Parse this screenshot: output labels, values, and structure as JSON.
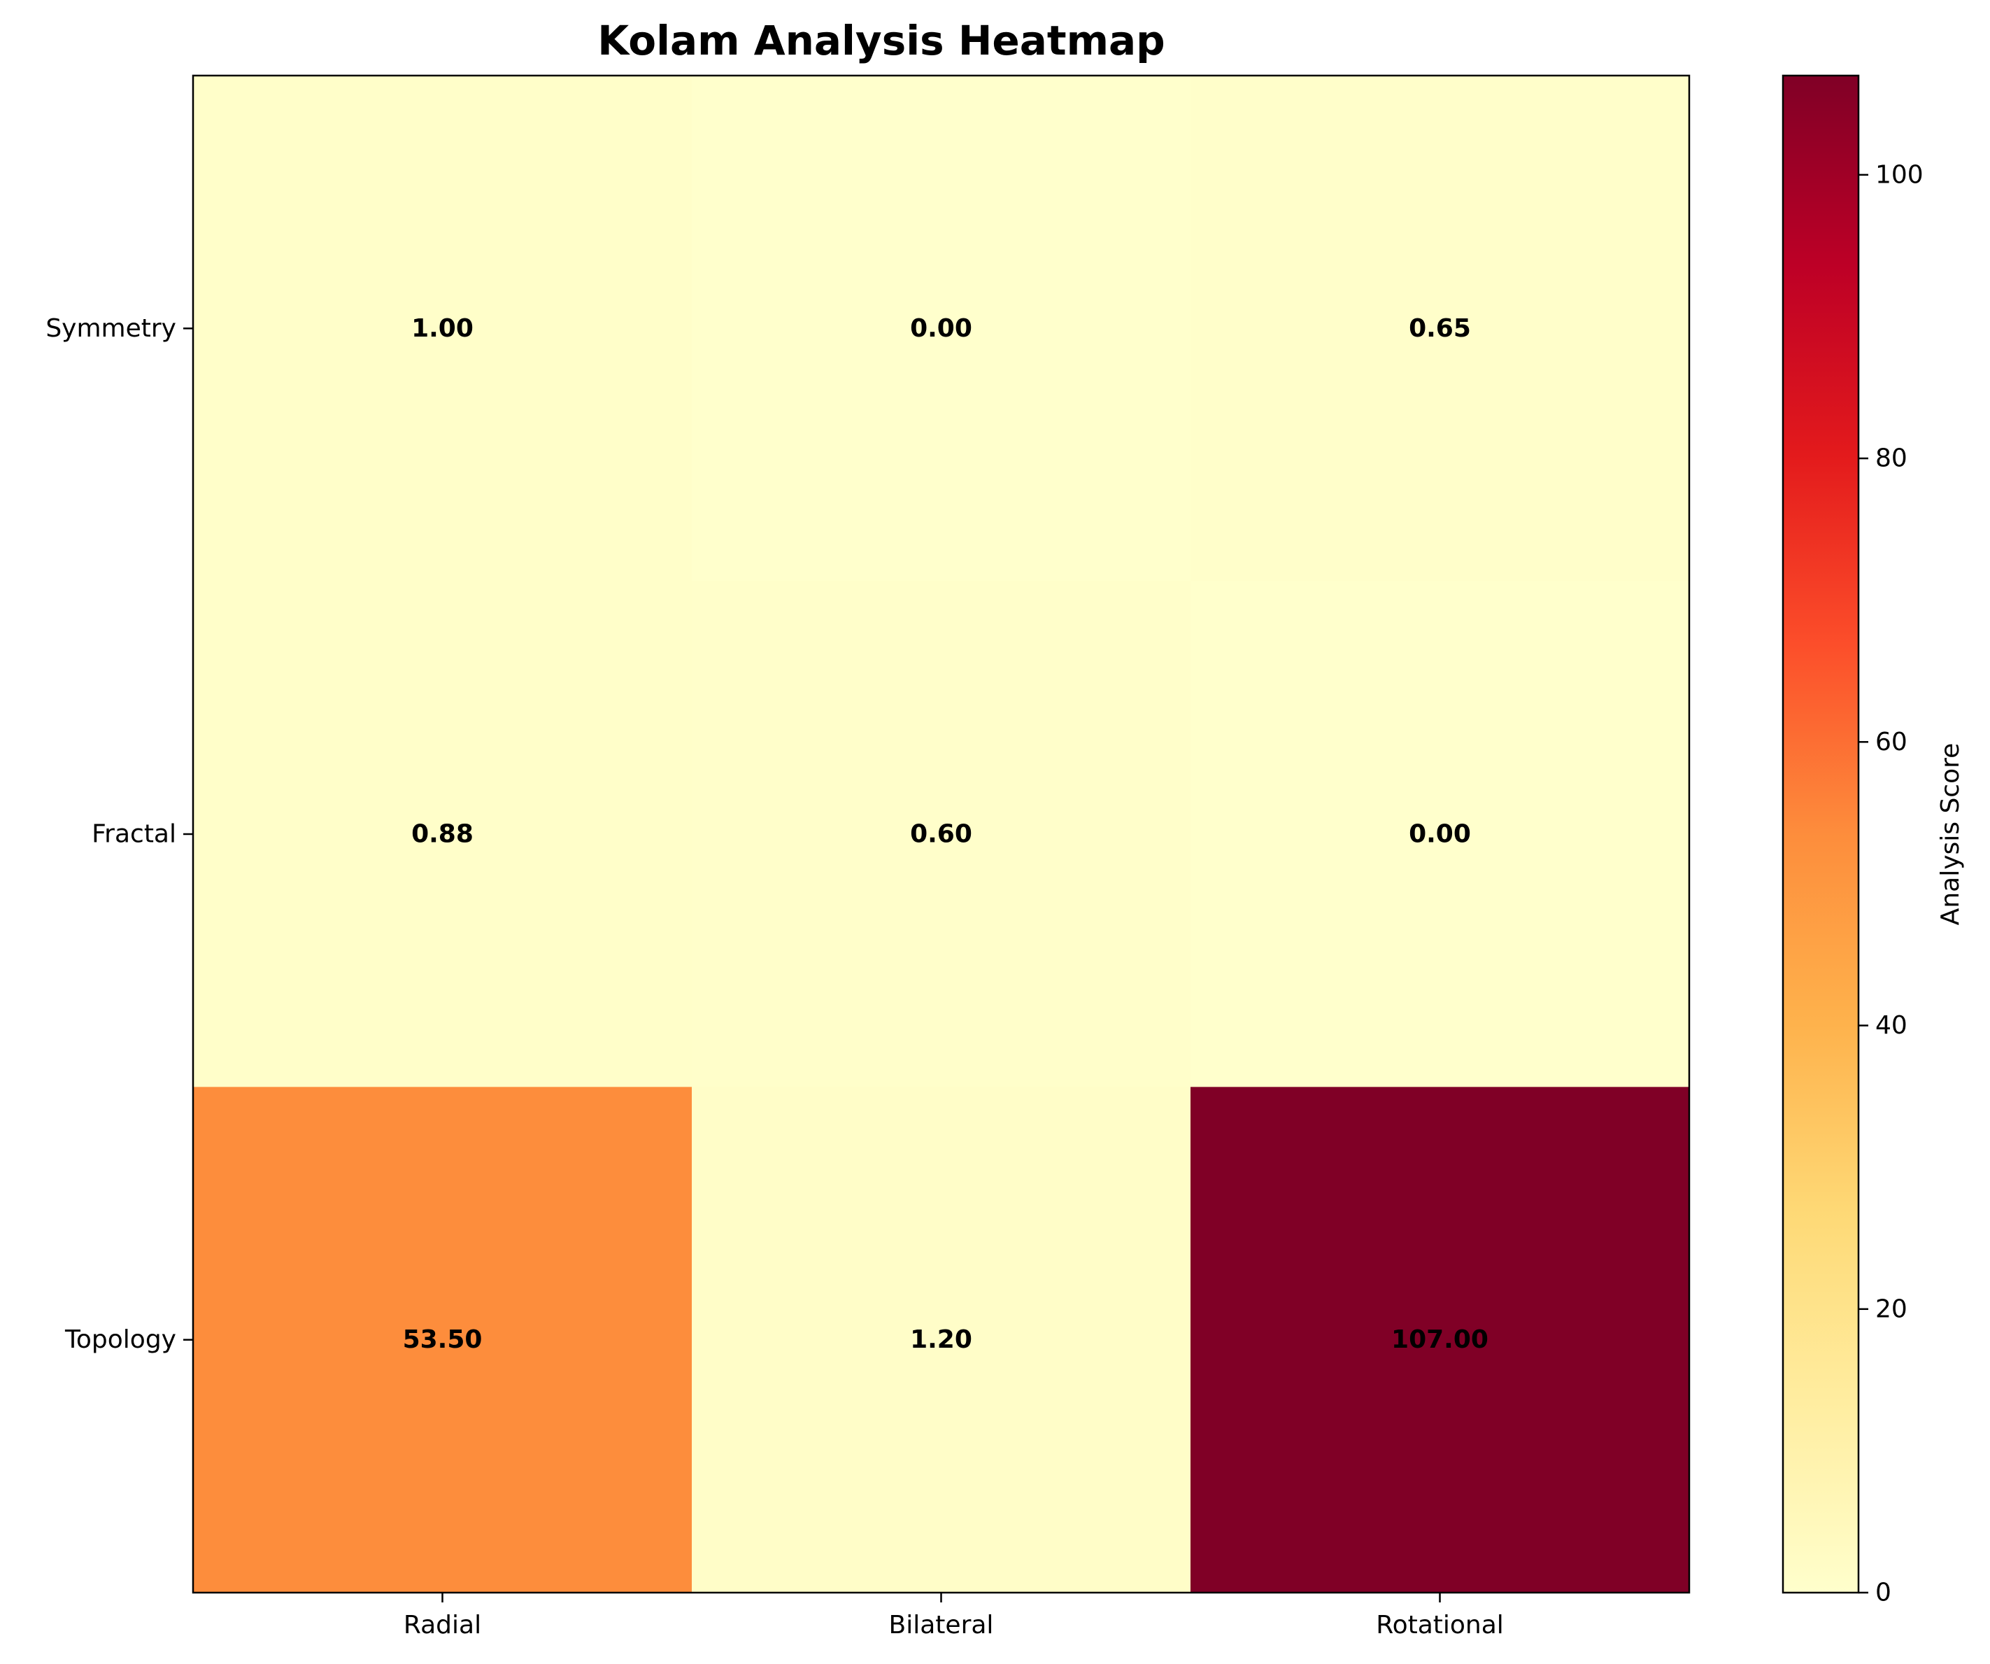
{
  "chart_data": {
    "type": "heatmap",
    "title": "Kolam Analysis Heatmap",
    "x_categories": [
      "Radial",
      "Bilateral",
      "Rotational"
    ],
    "y_categories": [
      "Symmetry",
      "Fractal",
      "Topology"
    ],
    "values": [
      [
        1.0,
        0.0,
        0.65
      ],
      [
        0.88,
        0.6,
        0.0
      ],
      [
        53.5,
        1.2,
        107.0
      ]
    ],
    "cell_labels": [
      [
        "1.00",
        "0.00",
        "0.65"
      ],
      [
        "0.88",
        "0.60",
        "0.00"
      ],
      [
        "53.50",
        "1.20",
        "107.00"
      ]
    ],
    "colorscale": "YlOrRd",
    "colorbar": {
      "label": "Analysis Score",
      "range": [
        0,
        107
      ],
      "ticks": [
        0,
        20,
        40,
        60,
        80,
        100
      ]
    }
  }
}
